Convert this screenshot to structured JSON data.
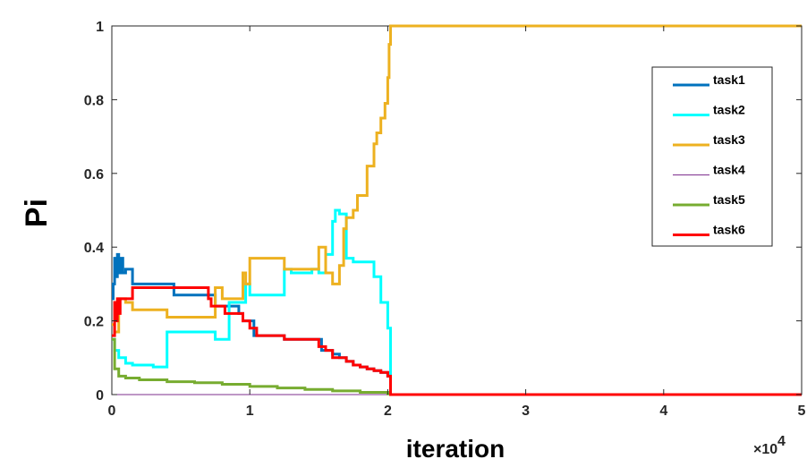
{
  "chart_data": {
    "type": "line",
    "xlabel": "iteration",
    "ylabel": "Pi",
    "x_multiplier": "×10",
    "x_multiplier_exp": "4",
    "xlim": [
      0,
      5
    ],
    "ylim": [
      0,
      1
    ],
    "xticks": [
      "0",
      "1",
      "2",
      "3",
      "4",
      "5"
    ],
    "yticks": [
      "0",
      "0.2",
      "0.4",
      "0.6",
      "0.8",
      "1"
    ],
    "xtick_values": [
      0,
      1,
      2,
      3,
      4,
      5
    ],
    "ytick_values": [
      0,
      0.2,
      0.4,
      0.6,
      0.8,
      1
    ],
    "grid": false,
    "legend_position": "top-right",
    "series": [
      {
        "name": "task1",
        "color": "#0072BD",
        "x": [
          0,
          0.01,
          0.02,
          0.03,
          0.04,
          0.05,
          0.06,
          0.08,
          0.1,
          0.15,
          0.2,
          0.3,
          0.4,
          0.45,
          0.7,
          0.75,
          0.8,
          0.9,
          0.92,
          0.95,
          1.0,
          1.03,
          1.25,
          1.5,
          1.52,
          1.6,
          1.65,
          1.7,
          1.75,
          1.8,
          1.85,
          1.9,
          1.95,
          2.0,
          2.02
        ],
        "y": [
          0.26,
          0.3,
          0.37,
          0.32,
          0.38,
          0.33,
          0.37,
          0.33,
          0.34,
          0.3,
          0.3,
          0.3,
          0.3,
          0.27,
          0.27,
          0.24,
          0.24,
          0.24,
          0.22,
          0.2,
          0.2,
          0.16,
          0.15,
          0.15,
          0.12,
          0.11,
          0.1,
          0.09,
          0.08,
          0.075,
          0.07,
          0.065,
          0.06,
          0.05,
          0
        ]
      },
      {
        "name": "task2",
        "color": "#00FFFF",
        "x": [
          0,
          0.02,
          0.05,
          0.1,
          0.15,
          0.25,
          0.3,
          0.4,
          0.4,
          0.7,
          0.75,
          0.8,
          0.85,
          0.95,
          0.97,
          1.0,
          1.25,
          1.3,
          1.45,
          1.5,
          1.55,
          1.6,
          1.62,
          1.65,
          1.7,
          1.75,
          1.85,
          1.9,
          1.95,
          2.0,
          2.02
        ],
        "y": [
          0.15,
          0.12,
          0.1,
          0.085,
          0.08,
          0.08,
          0.075,
          0.075,
          0.17,
          0.17,
          0.15,
          0.15,
          0.25,
          0.25,
          0.3,
          0.27,
          0.34,
          0.33,
          0.34,
          0.33,
          0.38,
          0.47,
          0.5,
          0.49,
          0.37,
          0.36,
          0.36,
          0.32,
          0.25,
          0.18,
          0
        ]
      },
      {
        "name": "task3",
        "color": "#EDB120",
        "x": [
          0,
          0.02,
          0.05,
          0.1,
          0.15,
          0.35,
          0.4,
          0.7,
          0.75,
          0.8,
          0.9,
          0.95,
          0.97,
          1.0,
          1.25,
          1.45,
          1.5,
          1.55,
          1.6,
          1.65,
          1.68,
          1.7,
          1.75,
          1.78,
          1.85,
          1.9,
          1.92,
          1.95,
          1.98,
          2.0,
          2.01,
          2.02,
          2.05,
          3.0,
          4.0,
          5.0
        ],
        "y": [
          0.19,
          0.17,
          0.26,
          0.25,
          0.23,
          0.23,
          0.21,
          0.21,
          0.29,
          0.26,
          0.26,
          0.33,
          0.3,
          0.37,
          0.34,
          0.34,
          0.4,
          0.33,
          0.3,
          0.35,
          0.45,
          0.48,
          0.5,
          0.54,
          0.62,
          0.68,
          0.71,
          0.75,
          0.79,
          0.86,
          0.95,
          1.0,
          1.0,
          1.0,
          1.0,
          1.0
        ]
      },
      {
        "name": "task4",
        "color": "#7E2F8E",
        "x": [
          0,
          5.0
        ],
        "y": [
          0,
          0
        ]
      },
      {
        "name": "task5",
        "color": "#77AC30",
        "x": [
          0,
          0.02,
          0.05,
          0.1,
          0.2,
          0.4,
          0.6,
          0.8,
          1.0,
          1.2,
          1.4,
          1.6,
          1.8,
          2.0,
          2.02,
          5.0
        ],
        "y": [
          0.15,
          0.07,
          0.05,
          0.045,
          0.04,
          0.035,
          0.032,
          0.028,
          0.022,
          0.018,
          0.014,
          0.01,
          0.006,
          0.002,
          0,
          0
        ]
      },
      {
        "name": "task6",
        "color": "#FF0000",
        "x": [
          0,
          0.02,
          0.03,
          0.04,
          0.05,
          0.06,
          0.1,
          0.15,
          0.4,
          0.7,
          0.72,
          0.8,
          0.82,
          0.9,
          0.95,
          1.0,
          1.05,
          1.25,
          1.5,
          1.55,
          1.6,
          1.65,
          1.7,
          1.75,
          1.8,
          1.85,
          1.9,
          1.95,
          2.0,
          2.02,
          3.0,
          4.0,
          5.0
        ],
        "y": [
          0.16,
          0.25,
          0.2,
          0.26,
          0.22,
          0.26,
          0.26,
          0.29,
          0.29,
          0.26,
          0.24,
          0.24,
          0.22,
          0.22,
          0.2,
          0.18,
          0.16,
          0.15,
          0.13,
          0.12,
          0.1,
          0.1,
          0.09,
          0.08,
          0.075,
          0.07,
          0.065,
          0.06,
          0.05,
          0,
          0,
          0,
          0
        ]
      }
    ]
  }
}
